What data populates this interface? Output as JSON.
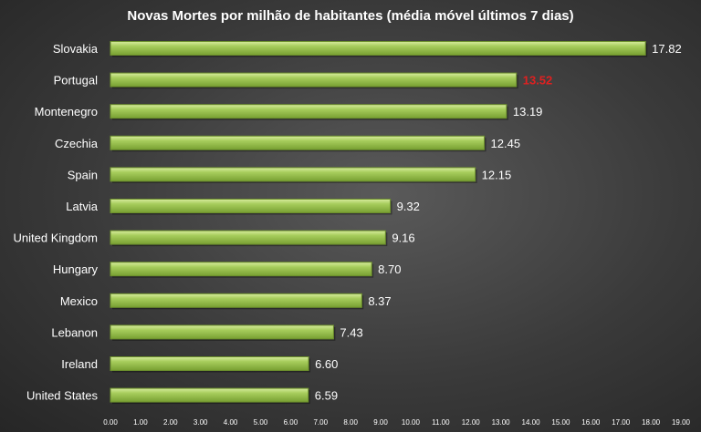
{
  "chart_data": {
    "type": "bar",
    "orientation": "horizontal",
    "title": "Novas Mortes por milhão de habitantes (média móvel últimos 7 dias)",
    "xlabel": "",
    "ylabel": "",
    "xlim": [
      0,
      19
    ],
    "x_ticks": [
      "0.00",
      "1.00",
      "2.00",
      "3.00",
      "4.00",
      "5.00",
      "6.00",
      "7.00",
      "8.00",
      "9.00",
      "10.00",
      "11.00",
      "12.00",
      "13.00",
      "14.00",
      "15.00",
      "16.00",
      "17.00",
      "18.00",
      "19.00"
    ],
    "grid": false,
    "legend": "none",
    "categories": [
      "Slovakia",
      "Portugal",
      "Montenegro",
      "Czechia",
      "Spain",
      "Latvia",
      "United Kingdom",
      "Hungary",
      "Mexico",
      "Lebanon",
      "Ireland",
      "United States"
    ],
    "values": [
      17.82,
      13.52,
      13.19,
      12.45,
      12.15,
      9.32,
      9.16,
      8.7,
      8.37,
      7.43,
      6.6,
      6.59
    ],
    "value_labels": [
      "17.82",
      "13.52",
      "13.19",
      "12.45",
      "12.15",
      "9.32",
      "9.16",
      "8.70",
      "8.37",
      "7.43",
      "6.60",
      "6.59"
    ],
    "highlight_category": "Portugal",
    "colors": {
      "bar": "#9bc24f",
      "highlight_label": "#e02020",
      "label": "#ffffff",
      "background": "#3a3a3a"
    }
  }
}
